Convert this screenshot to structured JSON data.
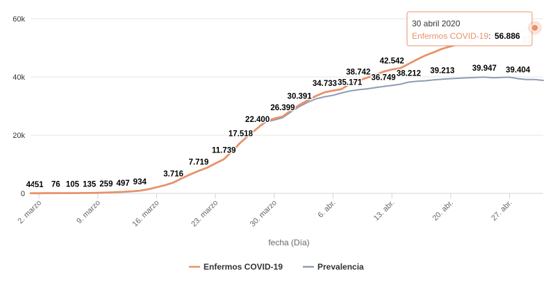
{
  "chart_data": {
    "type": "line",
    "xlabel": "fecha (Día)",
    "x_start": "2020-03-01",
    "x_end": "2020-05-01",
    "ylim": [
      0,
      60000
    ],
    "yticks": [
      0,
      20000,
      40000,
      60000
    ],
    "ytick_labels": [
      "0",
      "20k",
      "40k",
      "60k"
    ],
    "xticks": [
      {
        "date": "2020-03-02",
        "label": "2. marzo"
      },
      {
        "date": "2020-03-09",
        "label": "9. marzo"
      },
      {
        "date": "2020-03-16",
        "label": "16. marzo"
      },
      {
        "date": "2020-03-23",
        "label": "23. marzo"
      },
      {
        "date": "2020-03-30",
        "label": "30. marzo"
      },
      {
        "date": "2020-04-06",
        "label": "6. abr."
      },
      {
        "date": "2020-04-13",
        "label": "13. abr."
      },
      {
        "date": "2020-04-20",
        "label": "20. abr."
      },
      {
        "date": "2020-04-27",
        "label": "27. abr."
      }
    ],
    "grid": {
      "horizontal": true,
      "vertical": false
    },
    "legend_position": "bottom-center",
    "series": [
      {
        "name": "Enfermos COVID-19",
        "color": "#e8916a",
        "points": [
          [
            "2020-03-01",
            44
          ],
          [
            "2020-03-02",
            51
          ],
          [
            "2020-03-03",
            60
          ],
          [
            "2020-03-04",
            76
          ],
          [
            "2020-03-05",
            90
          ],
          [
            "2020-03-06",
            105
          ],
          [
            "2020-03-07",
            120
          ],
          [
            "2020-03-08",
            135
          ],
          [
            "2020-03-09",
            190
          ],
          [
            "2020-03-10",
            259
          ],
          [
            "2020-03-11",
            370
          ],
          [
            "2020-03-12",
            497
          ],
          [
            "2020-03-13",
            700
          ],
          [
            "2020-03-14",
            934
          ],
          [
            "2020-03-15",
            1400
          ],
          [
            "2020-03-16",
            2100
          ],
          [
            "2020-03-17",
            2800
          ],
          [
            "2020-03-18",
            3716
          ],
          [
            "2020-03-19",
            5200
          ],
          [
            "2020-03-20",
            6500
          ],
          [
            "2020-03-21",
            7719
          ],
          [
            "2020-03-22",
            8800
          ],
          [
            "2020-03-23",
            10300
          ],
          [
            "2020-03-24",
            11739
          ],
          [
            "2020-03-25",
            14500
          ],
          [
            "2020-03-26",
            17518
          ],
          [
            "2020-03-27",
            20000
          ],
          [
            "2020-03-28",
            22400
          ],
          [
            "2020-03-29",
            24800
          ],
          [
            "2020-03-30",
            25700
          ],
          [
            "2020-03-31",
            26399
          ],
          [
            "2020-04-01",
            28500
          ],
          [
            "2020-04-02",
            30391
          ],
          [
            "2020-04-03",
            32000
          ],
          [
            "2020-04-04",
            33500
          ],
          [
            "2020-04-05",
            34733
          ],
          [
            "2020-04-06",
            35300
          ],
          [
            "2020-04-07",
            35800
          ],
          [
            "2020-04-08",
            37600
          ],
          [
            "2020-04-09",
            38742
          ],
          [
            "2020-04-10",
            39700
          ],
          [
            "2020-04-11",
            40700
          ],
          [
            "2020-04-12",
            41800
          ],
          [
            "2020-04-13",
            42542
          ],
          [
            "2020-04-14",
            43000
          ],
          [
            "2020-04-15",
            44500
          ],
          [
            "2020-04-16",
            46000
          ],
          [
            "2020-04-17",
            47400
          ],
          [
            "2020-04-18",
            48500
          ],
          [
            "2020-04-19",
            49700
          ],
          [
            "2020-04-20",
            50500
          ],
          [
            "2020-04-21",
            51300
          ],
          [
            "2020-04-22",
            52100
          ],
          [
            "2020-04-23",
            52800
          ],
          [
            "2020-04-24",
            53500
          ],
          [
            "2020-04-25",
            54100
          ],
          [
            "2020-04-26",
            54700
          ],
          [
            "2020-04-27",
            55200
          ],
          [
            "2020-04-28",
            55700
          ],
          [
            "2020-04-29",
            56200
          ],
          [
            "2020-04-30",
            56886
          ]
        ],
        "labels": [
          [
            "2020-03-01",
            "44"
          ],
          [
            "2020-03-02",
            "51"
          ],
          [
            "2020-03-04",
            "76"
          ],
          [
            "2020-03-06",
            "105"
          ],
          [
            "2020-03-08",
            "135"
          ],
          [
            "2020-03-10",
            "259"
          ],
          [
            "2020-03-12",
            "497"
          ],
          [
            "2020-03-14",
            "934"
          ],
          [
            "2020-03-18",
            "3.716"
          ],
          [
            "2020-03-21",
            "7.719"
          ],
          [
            "2020-03-24",
            "11.739"
          ],
          [
            "2020-03-26",
            "17.518"
          ],
          [
            "2020-03-28",
            "22.400"
          ],
          [
            "2020-03-31",
            "26.399"
          ],
          [
            "2020-04-02",
            "30.391"
          ],
          [
            "2020-04-05",
            "34.733"
          ],
          [
            "2020-04-09",
            "38.742"
          ],
          [
            "2020-04-13",
            "42.542"
          ]
        ]
      },
      {
        "name": "Prevalencia",
        "color": "#8e9bb4",
        "points": [
          [
            "2020-03-01",
            44
          ],
          [
            "2020-03-02",
            51
          ],
          [
            "2020-03-03",
            60
          ],
          [
            "2020-03-04",
            76
          ],
          [
            "2020-03-05",
            90
          ],
          [
            "2020-03-06",
            105
          ],
          [
            "2020-03-07",
            120
          ],
          [
            "2020-03-08",
            135
          ],
          [
            "2020-03-09",
            190
          ],
          [
            "2020-03-10",
            259
          ],
          [
            "2020-03-11",
            370
          ],
          [
            "2020-03-12",
            497
          ],
          [
            "2020-03-13",
            700
          ],
          [
            "2020-03-14",
            934
          ],
          [
            "2020-03-15",
            1400
          ],
          [
            "2020-03-16",
            2100
          ],
          [
            "2020-03-17",
            2800
          ],
          [
            "2020-03-18",
            3716
          ],
          [
            "2020-03-19",
            5200
          ],
          [
            "2020-03-20",
            6500
          ],
          [
            "2020-03-21",
            7719
          ],
          [
            "2020-03-22",
            8800
          ],
          [
            "2020-03-23",
            10300
          ],
          [
            "2020-03-24",
            11739
          ],
          [
            "2020-03-25",
            14500
          ],
          [
            "2020-03-26",
            17518
          ],
          [
            "2020-03-27",
            20000
          ],
          [
            "2020-03-28",
            22400
          ],
          [
            "2020-03-29",
            24500
          ],
          [
            "2020-03-30",
            25200
          ],
          [
            "2020-03-31",
            26000
          ],
          [
            "2020-04-01",
            28000
          ],
          [
            "2020-04-02",
            29800
          ],
          [
            "2020-04-03",
            31300
          ],
          [
            "2020-04-04",
            32500
          ],
          [
            "2020-04-05",
            33200
          ],
          [
            "2020-04-06",
            33700
          ],
          [
            "2020-04-07",
            34500
          ],
          [
            "2020-04-08",
            35171
          ],
          [
            "2020-04-09",
            35600
          ],
          [
            "2020-04-10",
            35900
          ],
          [
            "2020-04-11",
            36300
          ],
          [
            "2020-04-12",
            36749
          ],
          [
            "2020-04-13",
            37100
          ],
          [
            "2020-04-14",
            37500
          ],
          [
            "2020-04-15",
            38212
          ],
          [
            "2020-04-16",
            38500
          ],
          [
            "2020-04-17",
            38700
          ],
          [
            "2020-04-18",
            39000
          ],
          [
            "2020-04-19",
            39213
          ],
          [
            "2020-04-20",
            39400
          ],
          [
            "2020-04-21",
            39550
          ],
          [
            "2020-04-22",
            39700
          ],
          [
            "2020-04-23",
            39800
          ],
          [
            "2020-04-24",
            39947
          ],
          [
            "2020-04-25",
            39700
          ],
          [
            "2020-04-26",
            39800
          ],
          [
            "2020-04-27",
            39900
          ],
          [
            "2020-04-28",
            39404
          ],
          [
            "2020-04-29",
            39100
          ],
          [
            "2020-04-30",
            39100
          ],
          [
            "2020-05-01",
            38800
          ]
        ],
        "labels": [
          [
            "2020-04-08",
            "35.171"
          ],
          [
            "2020-04-12",
            "36.749"
          ],
          [
            "2020-04-15",
            "38.212"
          ],
          [
            "2020-04-19",
            "39.213"
          ],
          [
            "2020-04-24",
            "39.947"
          ],
          [
            "2020-04-28",
            "39.404"
          ]
        ]
      }
    ],
    "tooltip": {
      "date": "30 abril 2020",
      "series_name": "Enfermos COVID-19",
      "separator": ":",
      "value": "56.886",
      "point_date": "2020-04-30",
      "point_value": 56886,
      "partial_label": "13"
    }
  }
}
